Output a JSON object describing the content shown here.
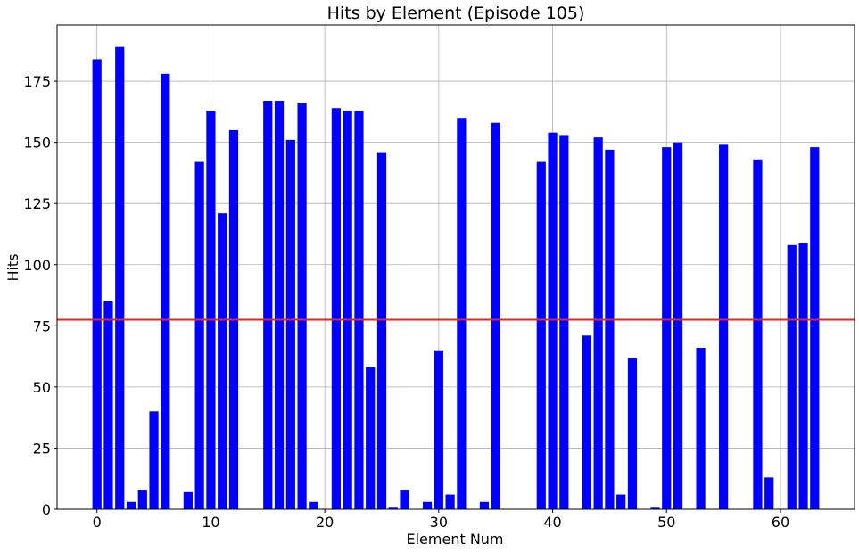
{
  "chart_data": {
    "type": "bar",
    "title": "Hits by Element (Episode 105)",
    "xlabel": "Element Num",
    "ylabel": "Hits",
    "xlim": [
      -3.5,
      66.5
    ],
    "ylim": [
      0,
      198
    ],
    "xticks": [
      0,
      10,
      20,
      30,
      40,
      50,
      60
    ],
    "yticks": [
      0,
      25,
      50,
      75,
      100,
      125,
      150,
      175
    ],
    "grid": true,
    "bar_color": "#0000ff",
    "reference_line": {
      "y": 77.5,
      "color": "#e8261c"
    },
    "x": [
      0,
      1,
      2,
      3,
      4,
      5,
      6,
      7,
      8,
      9,
      10,
      11,
      12,
      13,
      14,
      15,
      16,
      17,
      18,
      19,
      20,
      21,
      22,
      23,
      24,
      25,
      26,
      27,
      28,
      29,
      30,
      31,
      32,
      33,
      34,
      35,
      36,
      37,
      38,
      39,
      40,
      41,
      42,
      43,
      44,
      45,
      46,
      47,
      48,
      49,
      50,
      51,
      52,
      53,
      54,
      55,
      56,
      57,
      58,
      59,
      60,
      61,
      62,
      63
    ],
    "values": [
      184,
      85,
      189,
      3,
      8,
      40,
      178,
      0,
      7,
      142,
      163,
      121,
      155,
      0,
      0,
      167,
      167,
      151,
      166,
      3,
      0,
      164,
      163,
      163,
      58,
      146,
      1,
      8,
      0,
      3,
      65,
      6,
      160,
      0,
      3,
      158,
      0,
      0,
      0,
      142,
      154,
      153,
      0,
      71,
      152,
      147,
      6,
      62,
      0,
      1,
      148,
      150,
      0,
      66,
      0,
      149,
      0,
      0,
      143,
      13,
      0,
      108,
      109,
      148
    ]
  }
}
